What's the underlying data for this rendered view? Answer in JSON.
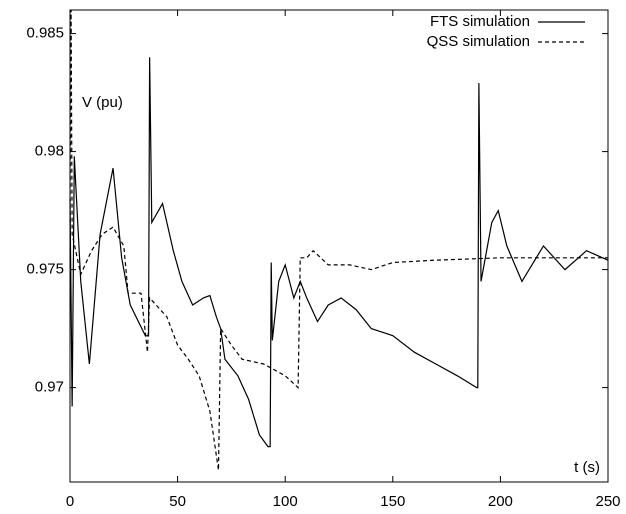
{
  "chart_data": {
    "type": "line",
    "x_label": "t (s)",
    "y_label": "V (pu)",
    "xlim": [
      0,
      250
    ],
    "ylim": [
      0.966,
      0.986
    ],
    "xticks": [
      0,
      50,
      100,
      150,
      200,
      250
    ],
    "yticks": [
      0.97,
      0.975,
      0.98,
      0.985
    ],
    "legend": "top-right",
    "series": [
      {
        "name": "FTS simulation",
        "color": "#000000",
        "dash": "solid",
        "x": [
          0,
          1,
          2,
          5,
          9,
          14,
          20,
          24,
          28,
          35,
          36.5,
          37,
          38,
          43,
          48,
          52,
          57,
          62,
          65,
          68,
          70,
          72,
          78,
          83,
          88,
          92,
          93,
          93.5,
          94,
          97,
          100,
          104,
          107,
          110,
          115,
          120,
          126,
          133,
          140,
          150,
          160,
          170,
          180,
          189,
          189.5,
          190,
          191,
          196,
          199,
          203,
          210,
          220,
          230,
          240,
          250
        ],
        "values": [
          0.978,
          0.9692,
          0.9798,
          0.9745,
          0.971,
          0.9765,
          0.9793,
          0.9755,
          0.9735,
          0.9722,
          0.9722,
          0.984,
          0.977,
          0.9778,
          0.9758,
          0.9745,
          0.9735,
          0.9738,
          0.9739,
          0.973,
          0.9725,
          0.9712,
          0.9705,
          0.9695,
          0.968,
          0.9675,
          0.9675,
          0.9753,
          0.972,
          0.9745,
          0.9752,
          0.9738,
          0.9745,
          0.9738,
          0.9728,
          0.9735,
          0.9738,
          0.9733,
          0.9725,
          0.9722,
          0.9715,
          0.971,
          0.9705,
          0.97,
          0.97,
          0.9829,
          0.9745,
          0.977,
          0.9775,
          0.976,
          0.9745,
          0.976,
          0.975,
          0.9758,
          0.9754
        ]
      },
      {
        "name": "QSS simulation",
        "color": "#000000",
        "dash": "dashed",
        "x": [
          0,
          0.5,
          1,
          5,
          10,
          15,
          20,
          25,
          27,
          33,
          36,
          37,
          40,
          45,
          50,
          55,
          60,
          65,
          69,
          70,
          75,
          80,
          90,
          100,
          106,
          107,
          110,
          113,
          120,
          130,
          140,
          150,
          170,
          200,
          250
        ],
        "values": [
          0.977,
          0.986,
          0.9765,
          0.9748,
          0.9758,
          0.9765,
          0.9768,
          0.976,
          0.974,
          0.974,
          0.9715,
          0.9738,
          0.9735,
          0.973,
          0.9718,
          0.9712,
          0.9705,
          0.969,
          0.9665,
          0.9725,
          0.9718,
          0.9712,
          0.971,
          0.9705,
          0.97,
          0.9755,
          0.9755,
          0.9758,
          0.9752,
          0.9752,
          0.975,
          0.9753,
          0.9754,
          0.9755,
          0.9755
        ]
      }
    ]
  }
}
